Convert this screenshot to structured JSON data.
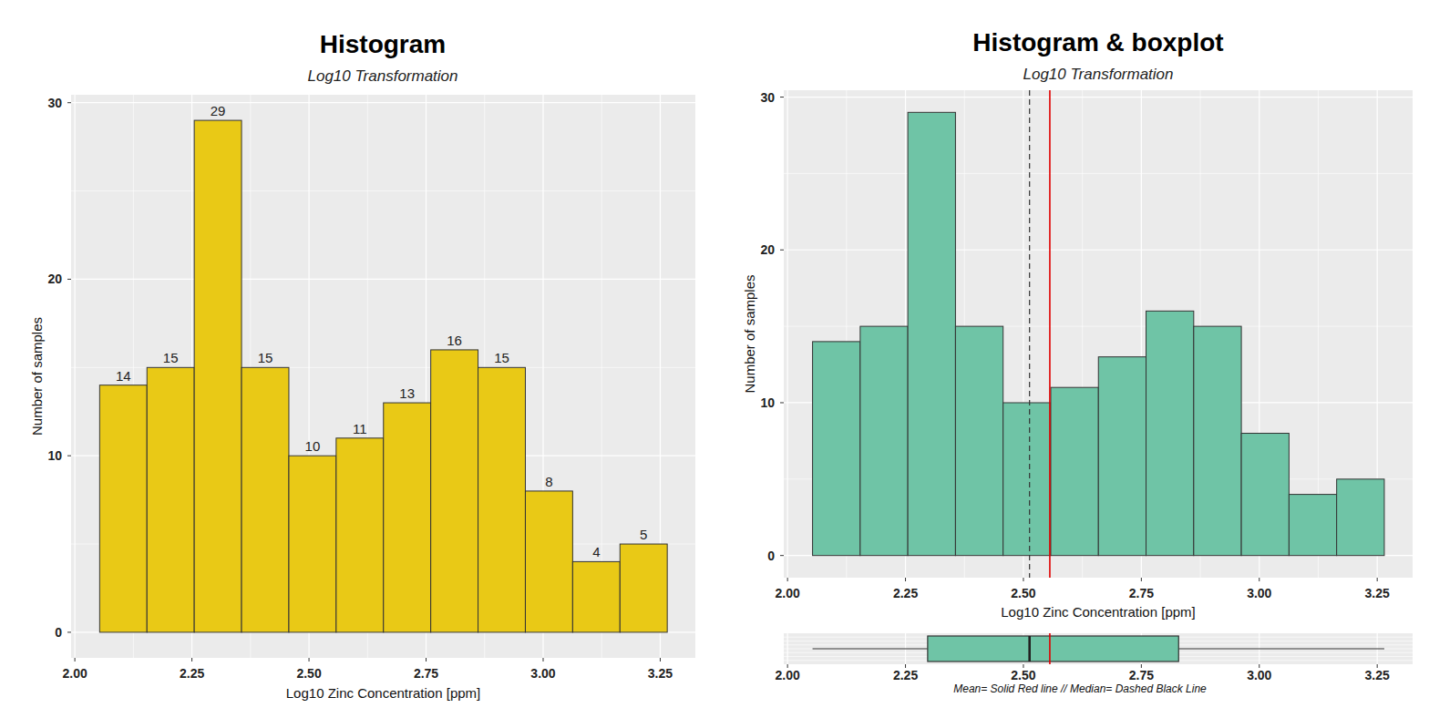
{
  "chart_data": [
    {
      "type": "histogram",
      "title": "Histogram",
      "subtitle": "Log10 Transformation",
      "x_label": "Log10 Zinc Concentration [ppm]",
      "y_label": "Number of samples",
      "bins": [
        2.053,
        2.154,
        2.255,
        2.356,
        2.457,
        2.558,
        2.659,
        2.76,
        2.861,
        2.962,
        3.063,
        3.164,
        3.265
      ],
      "values": [
        14,
        15,
        29,
        15,
        10,
        11,
        13,
        16,
        15,
        8,
        4,
        5
      ],
      "color": "#e9c916",
      "xlim": [
        1.992,
        3.325
      ],
      "ylim": [
        -1.45,
        30.45
      ],
      "xticks": [
        {
          "value": 2,
          "label": "2.00"
        },
        {
          "value": 2.25,
          "label": "2.25"
        },
        {
          "value": 2.5,
          "label": "2.50"
        },
        {
          "value": 2.75,
          "label": "2.75"
        },
        {
          "value": 3,
          "label": "3.00"
        },
        {
          "value": 3.25,
          "label": "3.25"
        }
      ],
      "yticks": [
        0,
        10,
        20,
        30
      ],
      "grid": true,
      "data_labels": true
    },
    {
      "type": "histogram",
      "title": "Histogram & boxplot",
      "subtitle": "Log10 Transformation",
      "x_label": "Log10 Zinc Concentration [ppm]",
      "y_label": "Number of samples",
      "bins": [
        2.053,
        2.154,
        2.255,
        2.356,
        2.457,
        2.558,
        2.659,
        2.76,
        2.861,
        2.962,
        3.063,
        3.164,
        3.265
      ],
      "values": [
        14,
        15,
        29,
        15,
        10,
        11,
        13,
        16,
        15,
        8,
        4,
        5
      ],
      "color": "#6fc4a6",
      "xlim": [
        1.992,
        3.325
      ],
      "ylim": [
        -1.45,
        30.45
      ],
      "xticks": [
        {
          "value": 2,
          "label": "2.00"
        },
        {
          "value": 2.25,
          "label": "2.25"
        },
        {
          "value": 2.5,
          "label": "2.50"
        },
        {
          "value": 2.75,
          "label": "2.75"
        },
        {
          "value": 3,
          "label": "3.00"
        },
        {
          "value": 3.25,
          "label": "3.25"
        }
      ],
      "yticks": [
        0,
        10,
        20,
        30
      ],
      "grid": true,
      "data_labels": false,
      "mean": 2.556,
      "median": 2.513,
      "boxplot": {
        "min": 2.053,
        "q1": 2.297,
        "q3": 2.829,
        "max": 3.265
      },
      "caption": "Mean= Solid Red line // Median= Dashed Black Line"
    }
  ]
}
